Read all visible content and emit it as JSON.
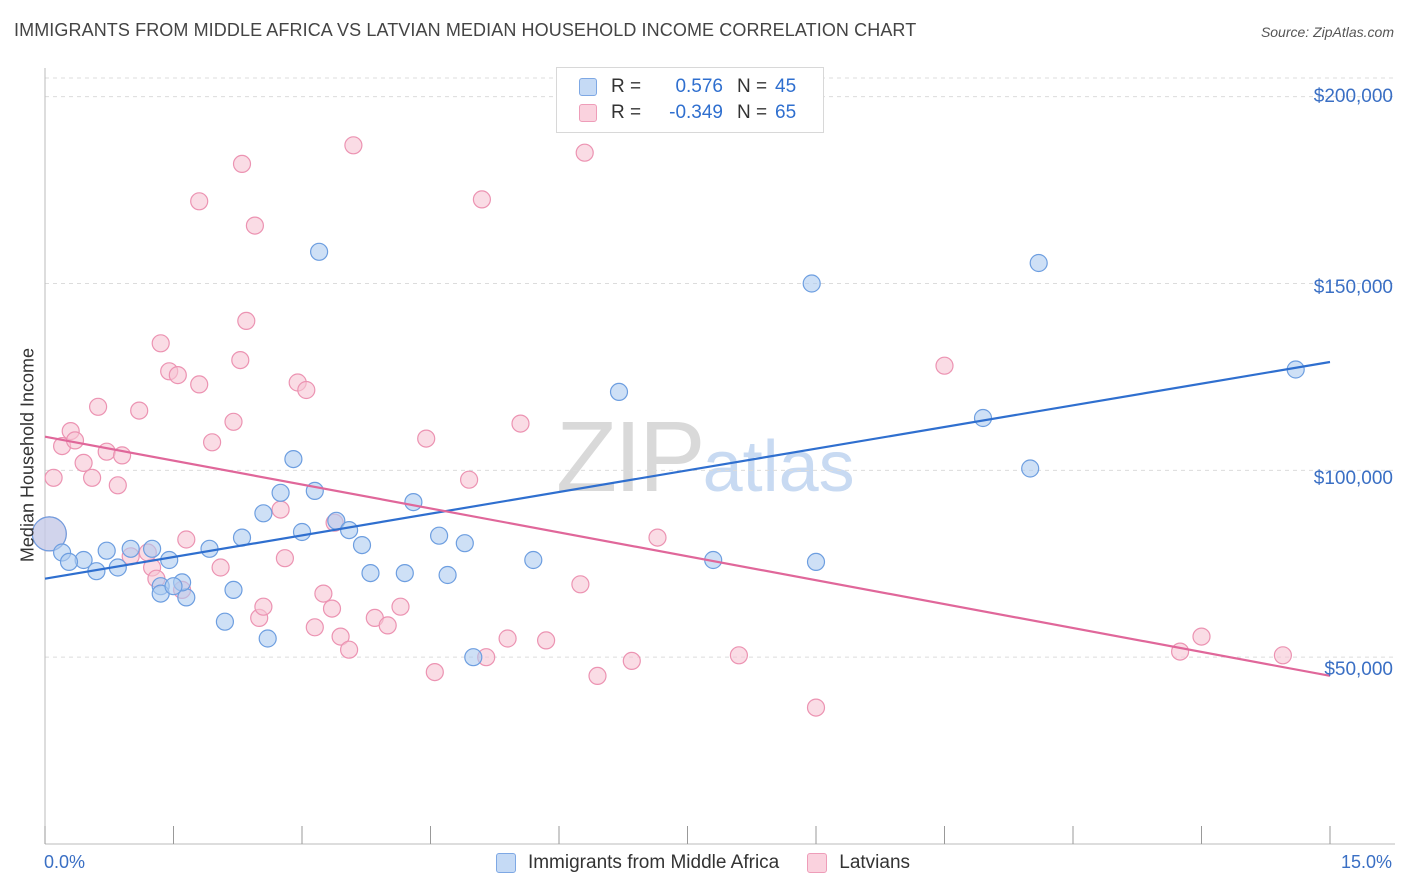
{
  "header": {
    "title": "IMMIGRANTS FROM MIDDLE AFRICA VS LATVIAN MEDIAN HOUSEHOLD INCOME CORRELATION CHART",
    "source": "Source: ZipAtlas.com"
  },
  "watermark": {
    "zip": "ZIP",
    "atlas": "atlas"
  },
  "legend": {
    "rows": [
      {
        "r_label": "R =",
        "r_value": "0.576",
        "n_label": "N =",
        "n_value": "45",
        "color": "#8db4ea"
      },
      {
        "r_label": "R =",
        "r_value": "-0.349",
        "n_label": "N =",
        "n_value": "65",
        "color": "#f2a8c0"
      }
    ]
  },
  "axis": {
    "x_min_label": "0.0%",
    "x_max_label": "15.0%",
    "y_label": "Median Household Income",
    "y_ticks": [
      "$200,000",
      "$150,000",
      "$100,000",
      "$50,000"
    ]
  },
  "colors": {
    "blue_fill": "#aecbf0",
    "blue_stroke": "#6d9ee0",
    "blue_line": "#2f6fcf",
    "pink_fill": "#f7c4d3",
    "pink_stroke": "#ec93b2",
    "pink_line": "#e0679a",
    "grid": "#dcdcdc"
  },
  "chart_data": {
    "type": "scatter",
    "title": "IMMIGRANTS FROM MIDDLE AFRICA VS LATVIAN MEDIAN HOUSEHOLD INCOME CORRELATION CHART",
    "xlabel": "",
    "ylabel": "Median Household Income",
    "xlim": [
      0,
      15
    ],
    "ylim": [
      0,
      205000
    ],
    "y_ticks": [
      50000,
      100000,
      150000,
      200000
    ],
    "grid": true,
    "legend_position": "top-center",
    "series": [
      {
        "name": "Immigrants from Middle Africa",
        "color": "#8db4ea",
        "trend": {
          "x": [
            0,
            15
          ],
          "y": [
            71000,
            129000
          ]
        },
        "points": [
          [
            0.05,
            83000
          ],
          [
            0.2,
            78000
          ],
          [
            0.45,
            76000
          ],
          [
            0.6,
            73000
          ],
          [
            0.72,
            78500
          ],
          [
            0.85,
            74000
          ],
          [
            1.0,
            79000
          ],
          [
            1.35,
            69000
          ],
          [
            1.65,
            66000
          ],
          [
            1.92,
            79000
          ],
          [
            2.1,
            59500
          ],
          [
            2.3,
            82000
          ],
          [
            2.6,
            55000
          ],
          [
            2.75,
            94000
          ],
          [
            2.9,
            103000
          ],
          [
            3.0,
            83500
          ],
          [
            3.15,
            94500
          ],
          [
            3.4,
            86500
          ],
          [
            3.55,
            84000
          ],
          [
            3.7,
            80000
          ],
          [
            3.8,
            72500
          ],
          [
            3.2,
            158500
          ],
          [
            4.2,
            72500
          ],
          [
            4.3,
            91500
          ],
          [
            4.6,
            82500
          ],
          [
            4.7,
            72000
          ],
          [
            4.9,
            80500
          ],
          [
            5.0,
            50000
          ],
          [
            5.7,
            76000
          ],
          [
            6.7,
            121000
          ],
          [
            7.8,
            76000
          ],
          [
            8.95,
            150000
          ],
          [
            9.0,
            75500
          ],
          [
            10.95,
            114000
          ],
          [
            11.5,
            100500
          ],
          [
            11.6,
            155500
          ],
          [
            14.6,
            127000
          ],
          [
            0.28,
            75500
          ],
          [
            1.25,
            79000
          ],
          [
            1.6,
            70000
          ],
          [
            1.35,
            67000
          ],
          [
            1.5,
            69000
          ],
          [
            2.2,
            68000
          ],
          [
            2.55,
            88500
          ],
          [
            1.45,
            76000
          ]
        ]
      },
      {
        "name": "Latvians",
        "color": "#f2a8c0",
        "trend": {
          "x": [
            0,
            15
          ],
          "y": [
            109000,
            45000
          ]
        },
        "points": [
          [
            0.05,
            83000
          ],
          [
            0.1,
            98000
          ],
          [
            0.2,
            106500
          ],
          [
            0.3,
            110500
          ],
          [
            0.35,
            108000
          ],
          [
            0.45,
            102000
          ],
          [
            0.55,
            98000
          ],
          [
            0.62,
            117000
          ],
          [
            0.72,
            105000
          ],
          [
            0.85,
            96000
          ],
          [
            0.9,
            104000
          ],
          [
            1.0,
            77000
          ],
          [
            1.1,
            116000
          ],
          [
            1.25,
            74000
          ],
          [
            1.3,
            71000
          ],
          [
            1.35,
            134000
          ],
          [
            1.45,
            126500
          ],
          [
            1.55,
            125500
          ],
          [
            1.65,
            81500
          ],
          [
            1.8,
            172000
          ],
          [
            1.8,
            123000
          ],
          [
            1.95,
            107500
          ],
          [
            2.05,
            74000
          ],
          [
            2.2,
            113000
          ],
          [
            2.28,
            129500
          ],
          [
            2.35,
            140000
          ],
          [
            2.45,
            165500
          ],
          [
            2.5,
            60500
          ],
          [
            2.55,
            63500
          ],
          [
            2.75,
            89500
          ],
          [
            2.8,
            76500
          ],
          [
            2.95,
            123500
          ],
          [
            3.05,
            121500
          ],
          [
            3.15,
            58000
          ],
          [
            3.25,
            67000
          ],
          [
            3.38,
            86000
          ],
          [
            3.45,
            55500
          ],
          [
            3.55,
            52000
          ],
          [
            3.6,
            187000
          ],
          [
            3.85,
            60500
          ],
          [
            4.0,
            58500
          ],
          [
            4.15,
            63500
          ],
          [
            4.45,
            108500
          ],
          [
            4.55,
            46000
          ],
          [
            4.95,
            97500
          ],
          [
            5.1,
            172500
          ],
          [
            5.15,
            50000
          ],
          [
            5.4,
            55000
          ],
          [
            5.55,
            112500
          ],
          [
            5.85,
            54500
          ],
          [
            6.25,
            69500
          ],
          [
            6.45,
            45000
          ],
          [
            6.3,
            185000
          ],
          [
            6.85,
            49000
          ],
          [
            7.15,
            82000
          ],
          [
            8.1,
            50500
          ],
          [
            9.0,
            36500
          ],
          [
            10.5,
            128000
          ],
          [
            13.25,
            51500
          ],
          [
            13.5,
            55500
          ],
          [
            14.45,
            50500
          ],
          [
            2.3,
            182000
          ],
          [
            1.2,
            78000
          ],
          [
            1.6,
            68000
          ],
          [
            3.35,
            63000
          ]
        ]
      }
    ]
  }
}
